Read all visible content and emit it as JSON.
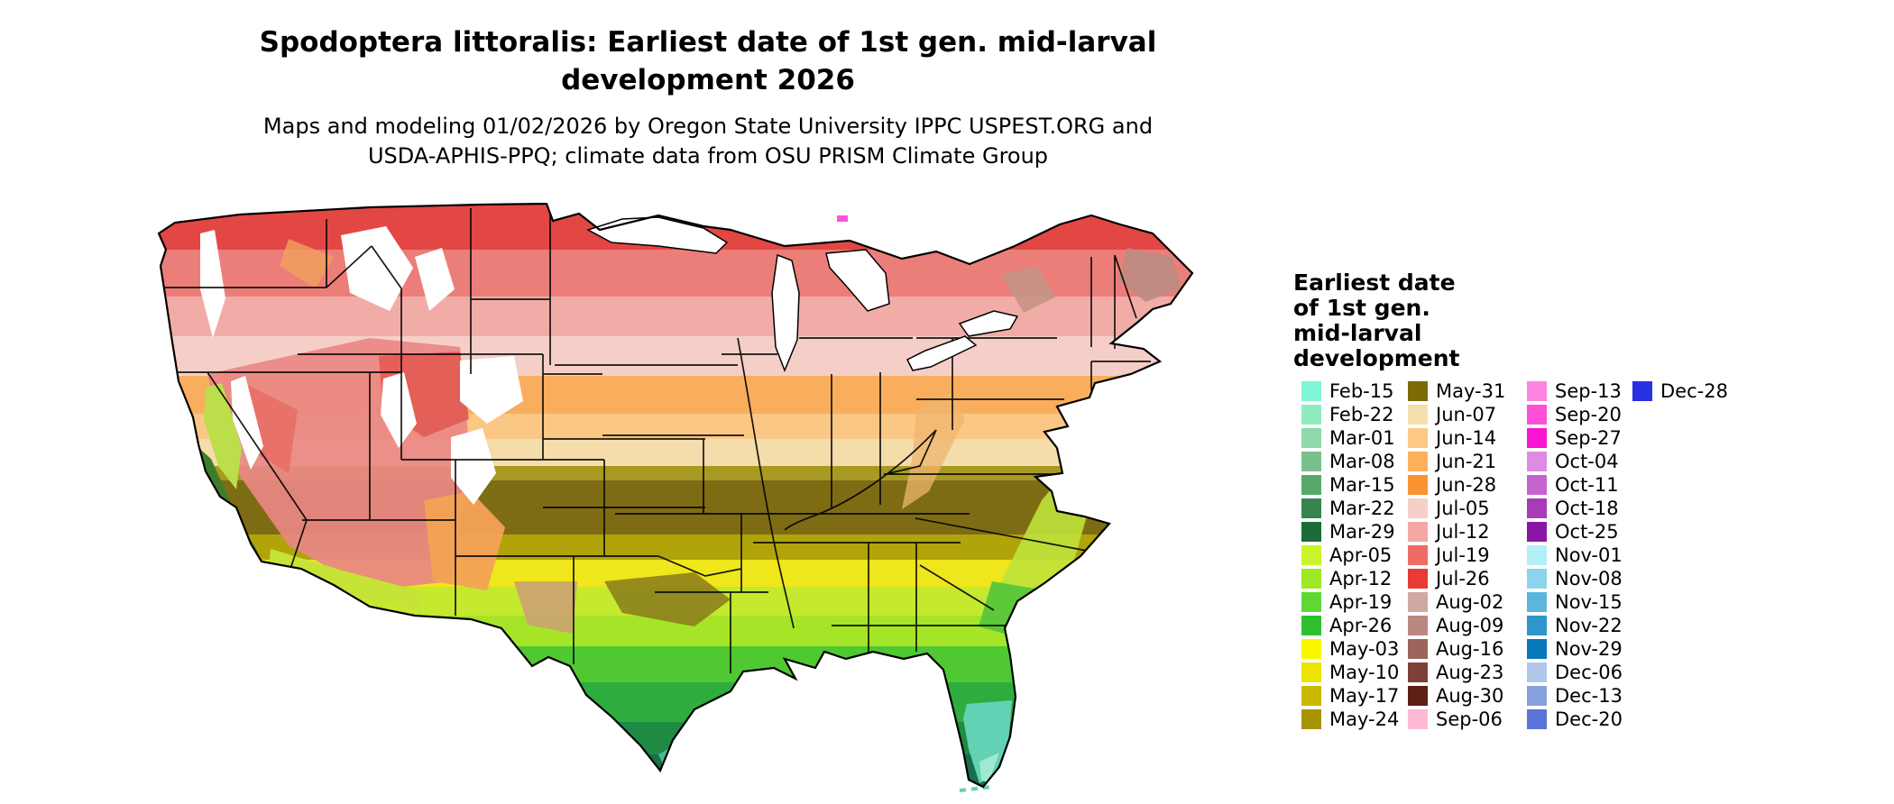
{
  "title": {
    "line1": "Spodoptera littoralis: Earliest date of 1st gen. mid-larval",
    "line2": "development 2026"
  },
  "subtitle": {
    "line1": "Maps and modeling 01/02/2026 by Oregon State University IPPC USPEST.ORG and",
    "line2": "USDA-APHIS-PPQ; climate data from OSU PRISM Climate Group"
  },
  "legend": {
    "title_lines": [
      "Earliest date",
      "of 1st gen.",
      "mid-larval",
      "development"
    ],
    "columns": [
      [
        {
          "label": "Feb-15",
          "color": "#7FF7D4"
        },
        {
          "label": "Feb-22",
          "color": "#8EECC3"
        },
        {
          "label": "Mar-01",
          "color": "#8FD8A8"
        },
        {
          "label": "Mar-08",
          "color": "#79C189"
        },
        {
          "label": "Mar-15",
          "color": "#59A86B"
        },
        {
          "label": "Mar-22",
          "color": "#37854D"
        },
        {
          "label": "Mar-29",
          "color": "#1C6B38"
        },
        {
          "label": "Apr-05",
          "color": "#C8F52A"
        },
        {
          "label": "Apr-12",
          "color": "#9FE823"
        },
        {
          "label": "Apr-19",
          "color": "#5ED931"
        },
        {
          "label": "Apr-26",
          "color": "#2EC12E"
        },
        {
          "label": "May-03",
          "color": "#F8F800"
        },
        {
          "label": "May-10",
          "color": "#EDE400"
        },
        {
          "label": "May-17",
          "color": "#CBB900"
        },
        {
          "label": "May-24",
          "color": "#A79300"
        }
      ],
      [
        {
          "label": "May-31",
          "color": "#7D6A06"
        },
        {
          "label": "Jun-07",
          "color": "#F3DFAD"
        },
        {
          "label": "Jun-14",
          "color": "#FBC983"
        },
        {
          "label": "Jun-21",
          "color": "#FCB05C"
        },
        {
          "label": "Jun-28",
          "color": "#F99434"
        },
        {
          "label": "Jul-05",
          "color": "#F6CFC9"
        },
        {
          "label": "Jul-12",
          "color": "#F2A8A4"
        },
        {
          "label": "Jul-19",
          "color": "#EF6B66"
        },
        {
          "label": "Jul-26",
          "color": "#E93A35"
        },
        {
          "label": "Aug-02",
          "color": "#D0A8A2"
        },
        {
          "label": "Aug-09",
          "color": "#BB8880"
        },
        {
          "label": "Aug-16",
          "color": "#9D645C"
        },
        {
          "label": "Aug-23",
          "color": "#7C4038"
        },
        {
          "label": "Aug-30",
          "color": "#5E1F17"
        },
        {
          "label": "Sep-06",
          "color": "#FFB9D5"
        }
      ],
      [
        {
          "label": "Sep-13",
          "color": "#FF84DF"
        },
        {
          "label": "Sep-20",
          "color": "#FF4FD8"
        },
        {
          "label": "Sep-27",
          "color": "#FA14D4"
        },
        {
          "label": "Oct-04",
          "color": "#DE8BE3"
        },
        {
          "label": "Oct-11",
          "color": "#C563CF"
        },
        {
          "label": "Oct-18",
          "color": "#A73BB8"
        },
        {
          "label": "Oct-25",
          "color": "#8A16A6"
        },
        {
          "label": "Nov-01",
          "color": "#B4EEF7"
        },
        {
          "label": "Nov-08",
          "color": "#8BD4EC"
        },
        {
          "label": "Nov-15",
          "color": "#5BB6DC"
        },
        {
          "label": "Nov-22",
          "color": "#2D97CB"
        },
        {
          "label": "Nov-29",
          "color": "#0879BA"
        },
        {
          "label": "Dec-06",
          "color": "#AFC7E8"
        },
        {
          "label": "Dec-13",
          "color": "#86A1DE"
        },
        {
          "label": "Dec-20",
          "color": "#5B74D8"
        }
      ],
      [
        {
          "label": "Dec-28",
          "color": "#2531E3"
        }
      ]
    ]
  },
  "map": {
    "region": "Contiguous United States"
  }
}
